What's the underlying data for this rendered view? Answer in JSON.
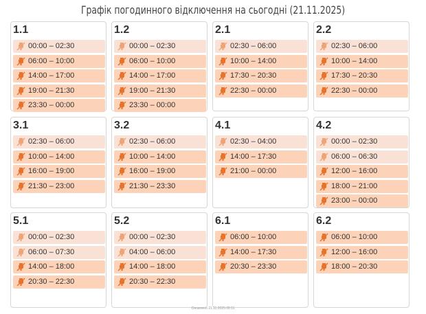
{
  "header": {
    "title": "Графік погодинного відключення на сьогодні (21.11.2025)"
  },
  "style": {
    "slot_color": "#fcd2b8",
    "faded_color": "#f9e2d5",
    "icon_color": "#e8732c"
  },
  "groups": [
    {
      "name": "1.1",
      "slots": [
        {
          "time": "00:00 – 02:30",
          "faded": true
        },
        {
          "time": "06:00 – 10:00",
          "faded": false
        },
        {
          "time": "14:00 – 17:00",
          "faded": false
        },
        {
          "time": "19:00 – 21:30",
          "faded": false
        },
        {
          "time": "23:30 – 00:00",
          "faded": false
        }
      ]
    },
    {
      "name": "1.2",
      "slots": [
        {
          "time": "00:00 – 02:30",
          "faded": true
        },
        {
          "time": "06:00 – 10:00",
          "faded": false
        },
        {
          "time": "14:00 – 17:00",
          "faded": false
        },
        {
          "time": "19:00 – 21:30",
          "faded": false
        },
        {
          "time": "23:30 – 00:00",
          "faded": false
        }
      ]
    },
    {
      "name": "2.1",
      "slots": [
        {
          "time": "02:30 – 06:00",
          "faded": true
        },
        {
          "time": "10:00 – 14:00",
          "faded": false
        },
        {
          "time": "17:30 – 20:30",
          "faded": false
        },
        {
          "time": "22:30 – 00:00",
          "faded": false
        }
      ]
    },
    {
      "name": "2.2",
      "slots": [
        {
          "time": "02:30 – 06:00",
          "faded": true
        },
        {
          "time": "10:00 – 14:00",
          "faded": false
        },
        {
          "time": "17:30 – 20:30",
          "faded": false
        },
        {
          "time": "22:30 – 00:00",
          "faded": false
        }
      ]
    },
    {
      "name": "3.1",
      "slots": [
        {
          "time": "02:30 – 06:00",
          "faded": true
        },
        {
          "time": "10:00 – 14:00",
          "faded": false
        },
        {
          "time": "16:00 – 19:00",
          "faded": false
        },
        {
          "time": "21:30 – 23:00",
          "faded": false
        }
      ]
    },
    {
      "name": "3.2",
      "slots": [
        {
          "time": "02:30 – 06:00",
          "faded": true
        },
        {
          "time": "10:00 – 14:00",
          "faded": false
        },
        {
          "time": "16:00 – 19:00",
          "faded": false
        },
        {
          "time": "21:30 – 23:30",
          "faded": false
        }
      ]
    },
    {
      "name": "4.1",
      "slots": [
        {
          "time": "02:30 – 04:00",
          "faded": true
        },
        {
          "time": "14:00 – 17:30",
          "faded": false
        },
        {
          "time": "21:00 – 00:00",
          "faded": false
        }
      ]
    },
    {
      "name": "4.2",
      "slots": [
        {
          "time": "00:00 – 02:30",
          "faded": true
        },
        {
          "time": "06:00 – 06:30",
          "faded": true
        },
        {
          "time": "12:00 – 16:00",
          "faded": false
        },
        {
          "time": "18:00 – 21:00",
          "faded": false
        },
        {
          "time": "23:00 – 00:00",
          "faded": false
        }
      ]
    },
    {
      "name": "5.1",
      "slots": [
        {
          "time": "00:00 – 02:30",
          "faded": true
        },
        {
          "time": "06:00 – 07:30",
          "faded": true
        },
        {
          "time": "14:00 – 18:00",
          "faded": false
        },
        {
          "time": "20:30 – 22:30",
          "faded": false
        }
      ]
    },
    {
      "name": "5.2",
      "slots": [
        {
          "time": "00:00 – 02:30",
          "faded": true
        },
        {
          "time": "04:00 – 06:00",
          "faded": true
        },
        {
          "time": "14:00 – 18:00",
          "faded": false
        },
        {
          "time": "20:30 – 22:30",
          "faded": false
        }
      ]
    },
    {
      "name": "6.1",
      "slots": [
        {
          "time": "06:00 – 10:00",
          "faded": false
        },
        {
          "time": "14:00 – 17:30",
          "faded": false
        },
        {
          "time": "20:30 – 23:30",
          "faded": false
        }
      ]
    },
    {
      "name": "6.2",
      "slots": [
        {
          "time": "06:00 – 10:00",
          "faded": false
        },
        {
          "time": "12:00 – 16:00",
          "faded": false
        },
        {
          "time": "18:00 – 20:30",
          "faded": false
        }
      ]
    }
  ],
  "footer": {
    "text": "Оновлено 21.11.2025 00:11"
  }
}
